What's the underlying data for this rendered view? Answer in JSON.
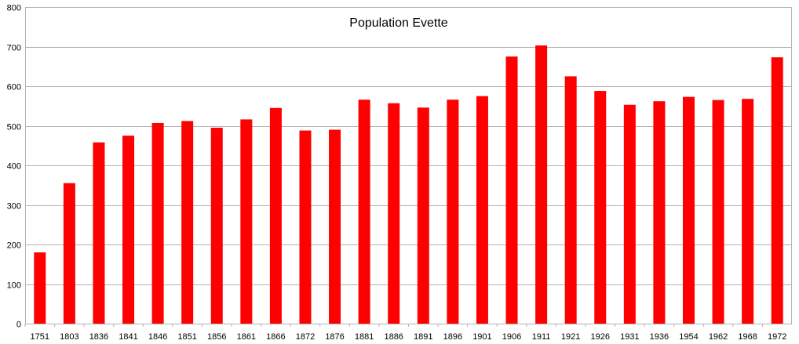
{
  "chart_data": {
    "type": "bar",
    "title": "Population Evette",
    "xlabel": "",
    "ylabel": "",
    "ylim": [
      0,
      800
    ],
    "yticks": [
      0,
      100,
      200,
      300,
      400,
      500,
      600,
      700,
      800
    ],
    "grid": true,
    "legend": "none",
    "bar_color": "#ff0000",
    "grid_color": "#b3b3b3",
    "categories": [
      "1751",
      "1803",
      "1836",
      "1841",
      "1846",
      "1851",
      "1856",
      "1861",
      "1866",
      "1872",
      "1876",
      "1881",
      "1886",
      "1891",
      "1896",
      "1901",
      "1906",
      "1911",
      "1921",
      "1926",
      "1931",
      "1936",
      "1954",
      "1962",
      "1968",
      "1972"
    ],
    "values": [
      180,
      355,
      458,
      475,
      507,
      512,
      495,
      516,
      545,
      488,
      490,
      566,
      557,
      546,
      566,
      575,
      675,
      703,
      625,
      588,
      553,
      562,
      573,
      565,
      568,
      673
    ]
  }
}
